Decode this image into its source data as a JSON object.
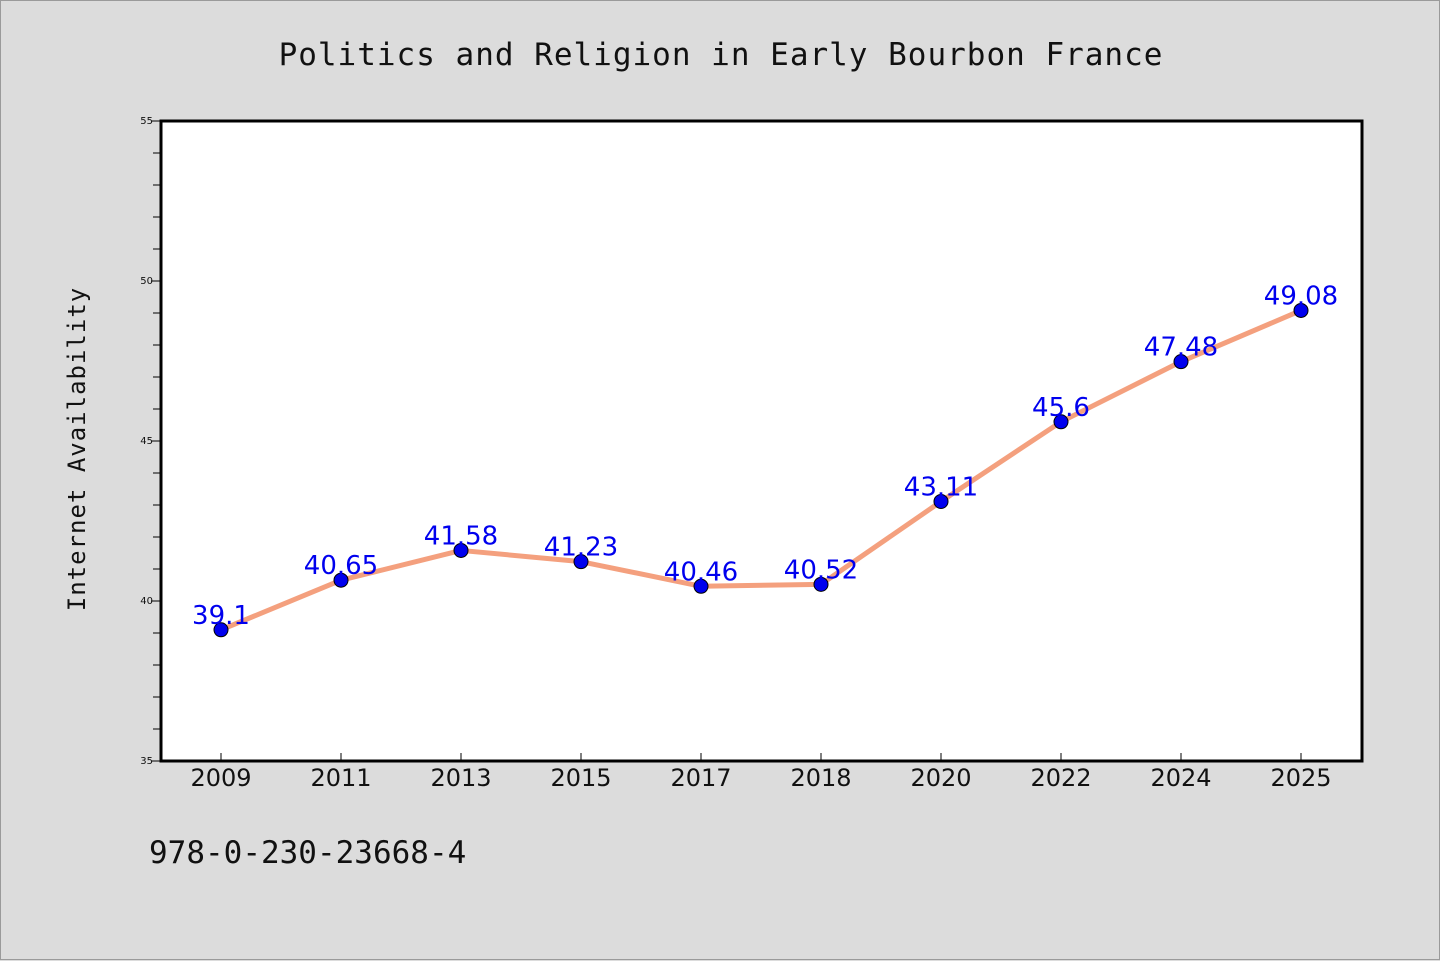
{
  "chart_data": {
    "type": "line",
    "title": "Politics and Religion in Early Bourbon France",
    "xlabel": "",
    "ylabel": "Internet Availability",
    "categories": [
      "2009",
      "2011",
      "2013",
      "2015",
      "2017",
      "2018",
      "2020",
      "2022",
      "2024",
      "2025"
    ],
    "values": [
      39.1,
      40.65,
      41.58,
      41.23,
      40.46,
      40.52,
      43.11,
      45.6,
      47.48,
      49.08
    ],
    "data_labels": [
      "39.1",
      "40.65",
      "41.58",
      "41.23",
      "40.46",
      "40.52",
      "43.11",
      "45.6",
      "47.48",
      "49.08"
    ],
    "ylim": [
      35,
      55
    ],
    "yticks": [
      "35",
      "40",
      "45",
      "50",
      "55"
    ],
    "grid": false,
    "legend": "none",
    "line_color": "#f4a07e",
    "marker_color": "#0000ee",
    "label_color": "#0000ee"
  },
  "footer": {
    "isbn": "978-0-230-23668-4"
  }
}
